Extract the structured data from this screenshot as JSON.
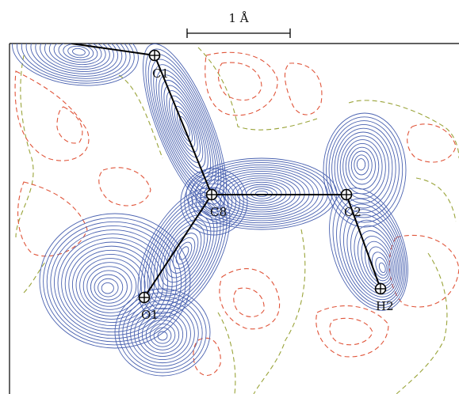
{
  "scale_bar": {
    "label": "1 Å"
  },
  "atoms": [
    {
      "id": "C1",
      "label": "C1"
    },
    {
      "id": "C8",
      "label": "C8"
    },
    {
      "id": "O2",
      "label": "O2"
    },
    {
      "id": "H2",
      "label": "H2"
    },
    {
      "id": "O1",
      "label": "O1"
    }
  ],
  "bonds": [
    [
      "C1",
      "C8"
    ],
    [
      "C8",
      "O2"
    ],
    [
      "O2",
      "H2"
    ],
    [
      "C8",
      "O1"
    ]
  ],
  "colors": {
    "positive_contour": "#4a62b0",
    "negative_contour": "#e0553a",
    "zero_contour": "#9aa43a",
    "bond": "#000000"
  }
}
